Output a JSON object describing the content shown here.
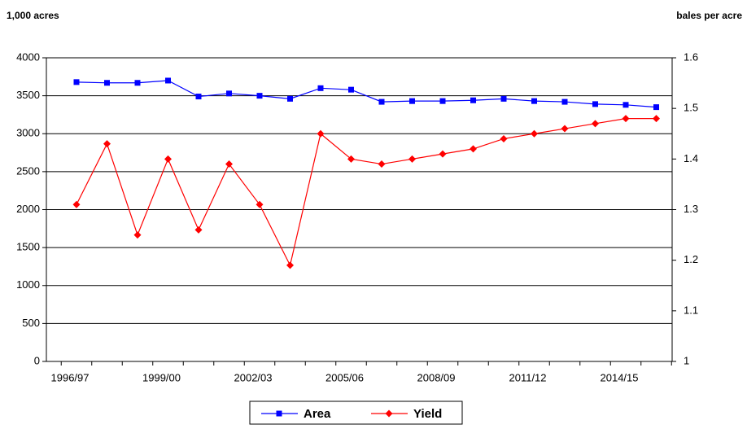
{
  "chart_data": {
    "type": "line",
    "y_axis_label": "1,000 acres",
    "y2_axis_label": "bales per acre",
    "categories": [
      "1996/97",
      null,
      null,
      "1999/00",
      null,
      null,
      "2002/03",
      null,
      null,
      "2005/06",
      null,
      null,
      "2008/09",
      null,
      null,
      "2011/12",
      null,
      null,
      "2014/15",
      null
    ],
    "series": [
      {
        "name": "Area",
        "color": "#0000ff",
        "marker": "square",
        "values": [
          3680,
          3670,
          3670,
          3700,
          3490,
          3530,
          3500,
          3460,
          3600,
          3580,
          3420,
          3430,
          3430,
          3440,
          3460,
          3430,
          3420,
          3390,
          3380,
          3350
        ]
      },
      {
        "name": "Yield",
        "color": "#ff0000",
        "marker": "diamond",
        "axis": "y2",
        "values": [
          1.31,
          1.43,
          1.25,
          1.4,
          1.26,
          1.39,
          1.31,
          1.19,
          1.45,
          1.4,
          1.39,
          1.4,
          1.41,
          1.42,
          1.44,
          1.45,
          1.46,
          1.47,
          1.48,
          1.48
        ]
      }
    ],
    "ylim": [
      0,
      4000
    ],
    "yticks": [
      0,
      500,
      1000,
      1500,
      2000,
      2500,
      3000,
      3500,
      4000
    ],
    "y2lim": [
      1,
      1.6
    ],
    "y2ticks": [
      1,
      1.1,
      1.2,
      1.3,
      1.4,
      1.5,
      1.6
    ],
    "grid": true,
    "legend": "bottom"
  }
}
